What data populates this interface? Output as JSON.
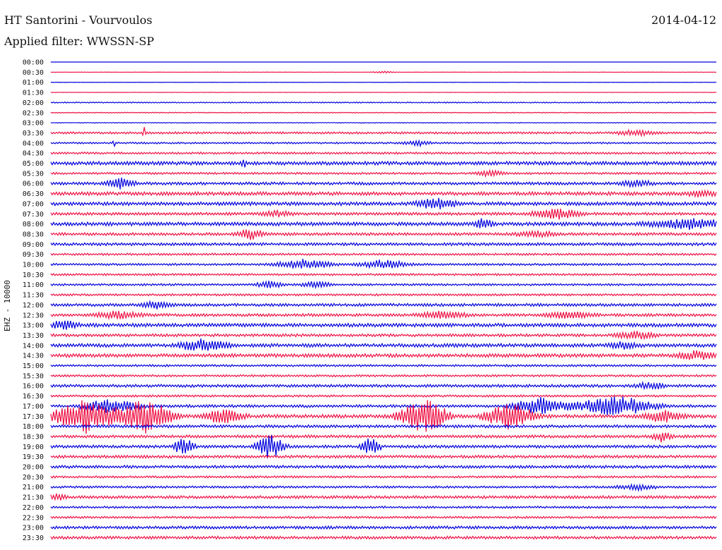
{
  "header": {
    "station": "HT Santorini - Vourvoulos",
    "date": "2014-04-12",
    "filter_label": "Applied filter: WWSSN-SP"
  },
  "channel_label": "EHZ - 10000",
  "colors": {
    "even": "#0000dd",
    "odd": "#ee1144",
    "text": "#111111"
  },
  "chart_data": {
    "type": "line",
    "title": "HT Santorini - Vourvoulos",
    "ylabel": "EHZ - 10000",
    "xlabel": "",
    "rows": [
      "00:00",
      "00:30",
      "01:00",
      "01:30",
      "02:00",
      "02:30",
      "03:00",
      "03:30",
      "04:00",
      "04:30",
      "05:00",
      "05:30",
      "06:00",
      "06:30",
      "07:00",
      "07:30",
      "08:00",
      "08:30",
      "09:00",
      "09:30",
      "10:00",
      "10:30",
      "11:00",
      "11:30",
      "12:00",
      "12:30",
      "13:00",
      "13:30",
      "14:00",
      "14:30",
      "15:00",
      "15:30",
      "16:00",
      "16:30",
      "17:00",
      "17:30",
      "18:00",
      "18:30",
      "19:00",
      "19:30",
      "20:00",
      "20:30",
      "21:00",
      "21:30",
      "22:00",
      "22:30",
      "23:00",
      "23:30"
    ],
    "noise_level": [
      0.0,
      0.3,
      0.2,
      0.4,
      0.8,
      0.6,
      0.5,
      1.5,
      1.2,
      1.5,
      2.5,
      1.5,
      2,
      2.5,
      2.5,
      2,
      2.5,
      2,
      2,
      1.5,
      1.5,
      1.5,
      1.5,
      1.5,
      2,
      2,
      2.5,
      2,
      2.5,
      2.5,
      1.5,
      1.5,
      2,
      1.5,
      2,
      2.5,
      2,
      2,
      2,
      2,
      2,
      1.5,
      1.5,
      2,
      1.5,
      1.5,
      2,
      2
    ],
    "events": [
      {
        "row": "00:30",
        "x": 0.5,
        "amp": 2,
        "width": 0.02
      },
      {
        "row": "03:30",
        "x": 0.14,
        "amp": 8,
        "width": 0.003
      },
      {
        "row": "03:30",
        "x": 0.88,
        "amp": 4,
        "width": 0.04
      },
      {
        "row": "04:00",
        "x": 0.095,
        "amp": 8,
        "width": 0.003
      },
      {
        "row": "04:00",
        "x": 0.55,
        "amp": 4,
        "width": 0.03
      },
      {
        "row": "05:00",
        "x": 0.29,
        "amp": 9,
        "width": 0.004
      },
      {
        "row": "05:30",
        "x": 0.66,
        "amp": 4,
        "width": 0.03
      },
      {
        "row": "06:00",
        "x": 0.105,
        "amp": 7,
        "width": 0.03
      },
      {
        "row": "06:00",
        "x": 0.88,
        "amp": 5,
        "width": 0.03
      },
      {
        "row": "06:30",
        "x": 0.98,
        "amp": 4,
        "width": 0.04
      },
      {
        "row": "07:00",
        "x": 0.58,
        "amp": 8,
        "width": 0.04
      },
      {
        "row": "07:30",
        "x": 0.76,
        "amp": 7,
        "width": 0.05
      },
      {
        "row": "07:30",
        "x": 0.34,
        "amp": 4,
        "width": 0.03
      },
      {
        "row": "08:00",
        "x": 0.65,
        "amp": 7,
        "width": 0.02
      },
      {
        "row": "08:00",
        "x": 0.96,
        "amp": 7,
        "width": 0.09
      },
      {
        "row": "08:30",
        "x": 0.3,
        "amp": 7,
        "width": 0.03
      },
      {
        "row": "08:30",
        "x": 0.73,
        "amp": 4,
        "width": 0.04
      },
      {
        "row": "10:00",
        "x": 0.38,
        "amp": 7,
        "width": 0.06
      },
      {
        "row": "10:00",
        "x": 0.5,
        "amp": 7,
        "width": 0.05
      },
      {
        "row": "11:00",
        "x": 0.33,
        "amp": 5,
        "width": 0.03
      },
      {
        "row": "11:00",
        "x": 0.4,
        "amp": 5,
        "width": 0.03
      },
      {
        "row": "12:00",
        "x": 0.16,
        "amp": 5,
        "width": 0.03
      },
      {
        "row": "12:30",
        "x": 0.1,
        "amp": 5,
        "width": 0.05
      },
      {
        "row": "12:30",
        "x": 0.59,
        "amp": 5,
        "width": 0.05
      },
      {
        "row": "12:30",
        "x": 0.78,
        "amp": 5,
        "width": 0.05
      },
      {
        "row": "13:00",
        "x": 0.02,
        "amp": 6,
        "width": 0.03
      },
      {
        "row": "13:30",
        "x": 0.88,
        "amp": 5,
        "width": 0.04
      },
      {
        "row": "14:00",
        "x": 0.23,
        "amp": 9,
        "width": 0.05
      },
      {
        "row": "14:00",
        "x": 0.86,
        "amp": 5,
        "width": 0.03
      },
      {
        "row": "14:30",
        "x": 0.97,
        "amp": 6,
        "width": 0.04
      },
      {
        "row": "16:00",
        "x": 0.9,
        "amp": 5,
        "width": 0.03
      },
      {
        "row": "17:00",
        "x": 0.85,
        "amp": 14,
        "width": 0.08
      },
      {
        "row": "17:00",
        "x": 0.74,
        "amp": 12,
        "width": 0.06
      },
      {
        "row": "17:00",
        "x": 0.09,
        "amp": 10,
        "width": 0.06
      },
      {
        "row": "17:30",
        "x": 0.05,
        "amp": 25,
        "width": 0.06
      },
      {
        "row": "17:30",
        "x": 0.14,
        "amp": 25,
        "width": 0.06
      },
      {
        "row": "17:30",
        "x": 0.26,
        "amp": 10,
        "width": 0.04
      },
      {
        "row": "17:30",
        "x": 0.56,
        "amp": 25,
        "width": 0.05
      },
      {
        "row": "17:30",
        "x": 0.69,
        "amp": 20,
        "width": 0.05
      },
      {
        "row": "17:30",
        "x": 0.92,
        "amp": 8,
        "width": 0.04
      },
      {
        "row": "18:30",
        "x": 0.92,
        "amp": 8,
        "width": 0.02
      },
      {
        "row": "19:00",
        "x": 0.2,
        "amp": 15,
        "width": 0.02
      },
      {
        "row": "19:00",
        "x": 0.33,
        "amp": 18,
        "width": 0.03
      },
      {
        "row": "19:00",
        "x": 0.48,
        "amp": 15,
        "width": 0.02
      },
      {
        "row": "21:00",
        "x": 0.88,
        "amp": 4,
        "width": 0.04
      },
      {
        "row": "21:30",
        "x": 0.01,
        "amp": 4,
        "width": 0.02
      }
    ]
  }
}
